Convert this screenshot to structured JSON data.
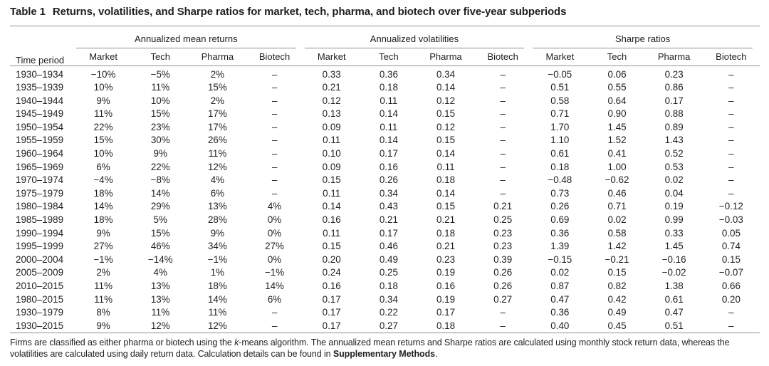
{
  "title": {
    "label": "Table 1",
    "text": "Returns, volatilities, and Sharpe ratios for market, tech, pharma, and biotech over five-year subperiods"
  },
  "table": {
    "period_header": "Time period",
    "groups": [
      {
        "label": "Annualized mean returns"
      },
      {
        "label": "Annualized volatilities"
      },
      {
        "label": "Sharpe ratios"
      }
    ],
    "col_headers": [
      "Market",
      "Tech",
      "Pharma",
      "Biotech"
    ],
    "missing_marker": "–",
    "rows": [
      {
        "period": "1930–1934",
        "returns": [
          "−10%",
          "−5%",
          "2%",
          "–"
        ],
        "vols": [
          "0.33",
          "0.36",
          "0.34",
          "–"
        ],
        "sharpes": [
          "−0.05",
          "0.06",
          "0.23",
          "–"
        ]
      },
      {
        "period": "1935–1939",
        "returns": [
          "10%",
          "11%",
          "15%",
          "–"
        ],
        "vols": [
          "0.21",
          "0.18",
          "0.14",
          "–"
        ],
        "sharpes": [
          "0.51",
          "0.55",
          "0.86",
          "–"
        ]
      },
      {
        "period": "1940–1944",
        "returns": [
          "9%",
          "10%",
          "2%",
          "–"
        ],
        "vols": [
          "0.12",
          "0.11",
          "0.12",
          "–"
        ],
        "sharpes": [
          "0.58",
          "0.64",
          "0.17",
          "–"
        ]
      },
      {
        "period": "1945–1949",
        "returns": [
          "11%",
          "15%",
          "17%",
          "–"
        ],
        "vols": [
          "0.13",
          "0.14",
          "0.15",
          "–"
        ],
        "sharpes": [
          "0.71",
          "0.90",
          "0.88",
          "–"
        ]
      },
      {
        "period": "1950–1954",
        "returns": [
          "22%",
          "23%",
          "17%",
          "–"
        ],
        "vols": [
          "0.09",
          "0.11",
          "0.12",
          "–"
        ],
        "sharpes": [
          "1.70",
          "1.45",
          "0.89",
          "–"
        ]
      },
      {
        "period": "1955–1959",
        "returns": [
          "15%",
          "30%",
          "26%",
          "–"
        ],
        "vols": [
          "0.11",
          "0.14",
          "0.15",
          "–"
        ],
        "sharpes": [
          "1.10",
          "1.52",
          "1.43",
          "–"
        ]
      },
      {
        "period": "1960–1964",
        "returns": [
          "10%",
          "9%",
          "11%",
          "–"
        ],
        "vols": [
          "0.10",
          "0.17",
          "0.14",
          "–"
        ],
        "sharpes": [
          "0.61",
          "0.41",
          "0.52",
          "–"
        ]
      },
      {
        "period": "1965–1969",
        "returns": [
          "6%",
          "22%",
          "12%",
          "–"
        ],
        "vols": [
          "0.09",
          "0.16",
          "0.11",
          "–"
        ],
        "sharpes": [
          "0.18",
          "1.00",
          "0.53",
          "–"
        ]
      },
      {
        "period": "1970–1974",
        "returns": [
          "−4%",
          "−8%",
          "4%",
          "–"
        ],
        "vols": [
          "0.15",
          "0.26",
          "0.18",
          "–"
        ],
        "sharpes": [
          "−0.48",
          "−0.62",
          "0.02",
          "–"
        ]
      },
      {
        "period": "1975–1979",
        "returns": [
          "18%",
          "14%",
          "6%",
          "–"
        ],
        "vols": [
          "0.11",
          "0.34",
          "0.14",
          "–"
        ],
        "sharpes": [
          "0.73",
          "0.46",
          "0.04",
          "–"
        ]
      },
      {
        "period": "1980–1984",
        "returns": [
          "14%",
          "29%",
          "13%",
          "4%"
        ],
        "vols": [
          "0.14",
          "0.43",
          "0.15",
          "0.21"
        ],
        "sharpes": [
          "0.26",
          "0.71",
          "0.19",
          "−0.12"
        ]
      },
      {
        "period": "1985–1989",
        "returns": [
          "18%",
          "5%",
          "28%",
          "0%"
        ],
        "vols": [
          "0.16",
          "0.21",
          "0.21",
          "0.25"
        ],
        "sharpes": [
          "0.69",
          "0.02",
          "0.99",
          "−0.03"
        ]
      },
      {
        "period": "1990–1994",
        "returns": [
          "9%",
          "15%",
          "9%",
          "0%"
        ],
        "vols": [
          "0.11",
          "0.17",
          "0.18",
          "0.23"
        ],
        "sharpes": [
          "0.36",
          "0.58",
          "0.33",
          "0.05"
        ]
      },
      {
        "period": "1995–1999",
        "returns": [
          "27%",
          "46%",
          "34%",
          "27%"
        ],
        "vols": [
          "0.15",
          "0.46",
          "0.21",
          "0.23"
        ],
        "sharpes": [
          "1.39",
          "1.42",
          "1.45",
          "0.74"
        ]
      },
      {
        "period": "2000–2004",
        "returns": [
          "−1%",
          "−14%",
          "−1%",
          "0%"
        ],
        "vols": [
          "0.20",
          "0.49",
          "0.23",
          "0.39"
        ],
        "sharpes": [
          "−0.15",
          "−0.21",
          "−0.16",
          "0.15"
        ]
      },
      {
        "period": "2005–2009",
        "returns": [
          "2%",
          "4%",
          "1%",
          "−1%"
        ],
        "vols": [
          "0.24",
          "0.25",
          "0.19",
          "0.26"
        ],
        "sharpes": [
          "0.02",
          "0.15",
          "−0.02",
          "−0.07"
        ]
      },
      {
        "period": "2010–2015",
        "returns": [
          "11%",
          "13%",
          "18%",
          "14%"
        ],
        "vols": [
          "0.16",
          "0.18",
          "0.16",
          "0.26"
        ],
        "sharpes": [
          "0.87",
          "0.82",
          "1.38",
          "0.66"
        ]
      },
      {
        "period": "1980–2015",
        "returns": [
          "11%",
          "13%",
          "14%",
          "6%"
        ],
        "vols": [
          "0.17",
          "0.34",
          "0.19",
          "0.27"
        ],
        "sharpes": [
          "0.47",
          "0.42",
          "0.61",
          "0.20"
        ]
      },
      {
        "period": "1930–1979",
        "returns": [
          "8%",
          "11%",
          "11%",
          "–"
        ],
        "vols": [
          "0.17",
          "0.22",
          "0.17",
          "–"
        ],
        "sharpes": [
          "0.36",
          "0.49",
          "0.47",
          "–"
        ]
      },
      {
        "period": "1930–2015",
        "returns": [
          "9%",
          "12%",
          "12%",
          "–"
        ],
        "vols": [
          "0.17",
          "0.27",
          "0.18",
          "–"
        ],
        "sharpes": [
          "0.40",
          "0.45",
          "0.51",
          "–"
        ]
      }
    ]
  },
  "footnote": {
    "part1": "Firms are classified as either pharma or biotech using the ",
    "k_italic": "k",
    "part2": "-means algorithm. The annualized mean returns and Sharpe ratios are calculated using monthly stock return data, whereas the volatilities are calculated using daily return data. Calculation details can be found in ",
    "bold": "Supplementary Methods",
    "part3": "."
  },
  "colors": {
    "text": "#1f1f1f",
    "rule": "#8f8f8f",
    "background": "#ffffff"
  }
}
